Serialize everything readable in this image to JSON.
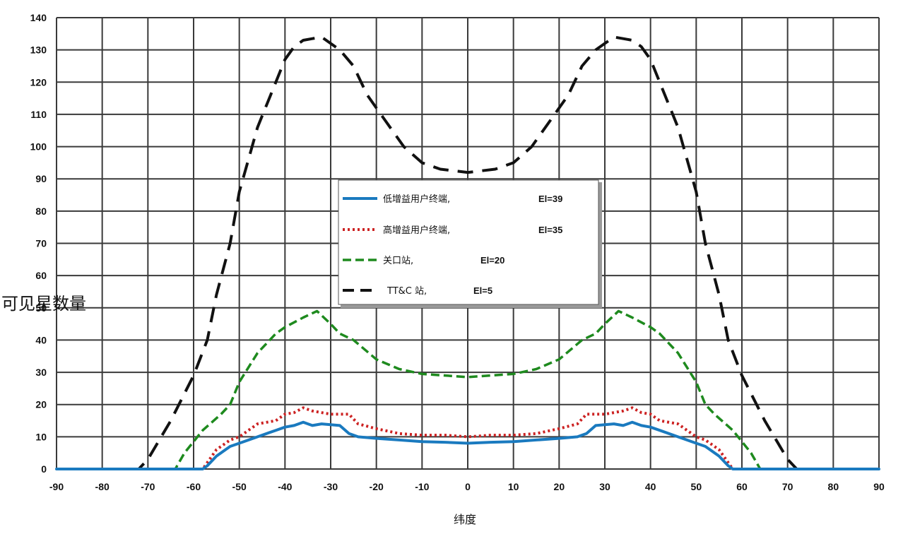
{
  "chart_data": {
    "type": "line",
    "title": "",
    "xlabel": "纬度",
    "ylabel": "可见星数量",
    "xlim": [
      -90,
      90
    ],
    "ylim": [
      0,
      140
    ],
    "xticks": [
      "-90",
      "-80",
      "-70",
      "-60",
      "-50",
      "-40",
      "-30",
      "-20",
      "-10",
      "0",
      "10",
      "20",
      "30",
      "40",
      "50",
      "60",
      "70",
      "80",
      "90"
    ],
    "yticks": [
      "0",
      "10",
      "20",
      "30",
      "40",
      "50",
      "60",
      "70",
      "80",
      "90",
      "100",
      "110",
      "120",
      "130",
      "140"
    ],
    "grid": true,
    "legend_position": "center",
    "series": [
      {
        "name": "低增益用户终端,",
        "el_label": "El=39",
        "color": "#1a7abf",
        "style": "solid",
        "x": [
          -90,
          -58,
          -57,
          -55,
          -52,
          -50,
          -46,
          -42,
          -40,
          -38,
          -36,
          -34,
          -32,
          -28,
          -26,
          -24,
          -20,
          -15,
          -10,
          -5,
          0,
          5,
          10,
          15,
          20,
          24,
          26,
          28,
          32,
          34,
          36,
          38,
          40,
          42,
          46,
          50,
          52,
          55,
          57,
          58,
          90
        ],
        "y": [
          0,
          0,
          1,
          4,
          7,
          8,
          10,
          12,
          13,
          13.5,
          14.5,
          13.5,
          14,
          13.5,
          11,
          10,
          9.5,
          9,
          8.5,
          8.3,
          8,
          8.3,
          8.5,
          9,
          9.5,
          10,
          11,
          13.5,
          14,
          13.5,
          14.5,
          13.5,
          13,
          12,
          10,
          8,
          7,
          4,
          1,
          0,
          0
        ]
      },
      {
        "name": "高增益用户终端,",
        "el_label": "El=35",
        "color": "#cc2222",
        "style": "dotted",
        "x": [
          -90,
          -58,
          -57,
          -55,
          -52,
          -50,
          -46,
          -42,
          -40,
          -38,
          -36,
          -34,
          -30,
          -26,
          -24,
          -20,
          -15,
          -10,
          -5,
          0,
          5,
          10,
          15,
          20,
          24,
          26,
          30,
          34,
          36,
          38,
          40,
          42,
          46,
          50,
          52,
          55,
          57,
          58,
          90
        ],
        "y": [
          0,
          0,
          2,
          6,
          9,
          10,
          14,
          15,
          17,
          17.5,
          19,
          18,
          17,
          17,
          14,
          12.5,
          11,
          10.5,
          10.5,
          10,
          10.5,
          10.5,
          11,
          12.5,
          14,
          17,
          17,
          18,
          19,
          17.5,
          17,
          15,
          14,
          10,
          9,
          6,
          2,
          0,
          0
        ]
      },
      {
        "name": "关口站,",
        "el_label": "El=20",
        "color": "#1e8a1e",
        "style": "dashed",
        "x": [
          -90,
          -64,
          -62,
          -58,
          -54,
          -52,
          -50,
          -46,
          -42,
          -40,
          -36,
          -33,
          -30,
          -28,
          -25,
          -20,
          -15,
          -10,
          -5,
          0,
          5,
          10,
          15,
          20,
          25,
          28,
          30,
          33,
          36,
          40,
          42,
          46,
          50,
          52,
          54,
          58,
          62,
          64,
          90
        ],
        "y": [
          0,
          0,
          5,
          12,
          17,
          20,
          27,
          36,
          42,
          44,
          47,
          49,
          45,
          42,
          40,
          34,
          31,
          29.5,
          29,
          28.5,
          29,
          29.5,
          31,
          34,
          40,
          42,
          45,
          49,
          47,
          44,
          42,
          36,
          27,
          20,
          17,
          12,
          5,
          0,
          0
        ]
      },
      {
        "name": "TT&C 站,",
        "el_label": "El=5",
        "color": "#111111",
        "style": "longdash",
        "x": [
          -90,
          -72,
          -70,
          -65,
          -60,
          -57,
          -55,
          -52,
          -50,
          -46,
          -42,
          -40,
          -38,
          -36,
          -34,
          -32,
          -30,
          -28,
          -25,
          -22,
          -18,
          -14,
          -10,
          -6,
          -3,
          0,
          3,
          6,
          10,
          14,
          18,
          22,
          25,
          28,
          30,
          32,
          34,
          36,
          38,
          40,
          42,
          46,
          50,
          52,
          55,
          57,
          60,
          65,
          70,
          72,
          90
        ],
        "y": [
          0,
          0,
          3,
          15,
          29,
          40,
          54,
          70,
          86,
          106,
          120,
          127,
          131,
          133,
          133.5,
          134,
          132,
          130,
          125,
          116,
          108,
          100,
          95,
          93,
          92.5,
          92,
          92.5,
          93,
          95,
          100,
          108,
          116,
          125,
          130,
          132,
          134,
          133.5,
          133,
          131,
          127,
          120,
          106,
          86,
          70,
          54,
          40,
          29,
          15,
          3,
          0,
          0
        ]
      }
    ]
  }
}
